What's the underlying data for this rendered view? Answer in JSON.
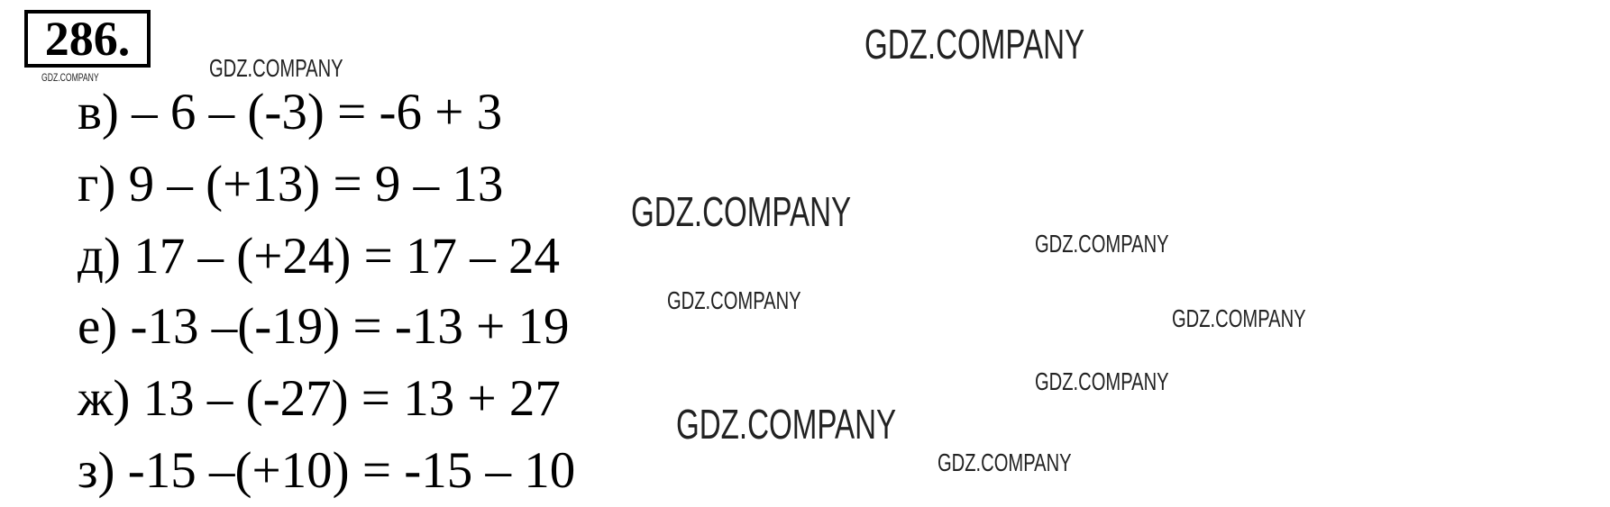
{
  "problem_number": "286.",
  "lines": [
    "в) – 6 – (-3) = -6 + 3",
    "г) 9 – (+13) = 9 – 13",
    "д) 17 – (+24) = 17 – 24",
    "е) -13 –(-19) = -13 + 19",
    "ж) 13 – (-27) = 13 + 27",
    "з) -15 –(+10) = -15 – 10"
  ],
  "watermark": "GDZ.COMPANY"
}
